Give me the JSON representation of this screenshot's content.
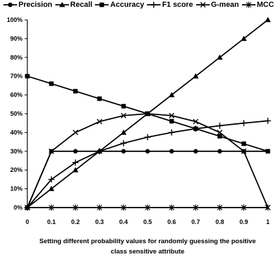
{
  "chart_data": {
    "type": "line",
    "title": "",
    "xlabel_lines": [
      "Setting different probability values for randomly guessing the positive",
      "class sensitive attribute"
    ],
    "ylabel": "",
    "x": [
      0,
      0.1,
      0.2,
      0.3,
      0.4,
      0.5,
      0.6,
      0.7,
      0.8,
      0.9,
      1
    ],
    "x_tick_labels": [
      "0",
      "0.1",
      "0.2",
      "0.3",
      "0.4",
      "0.5",
      "0.6",
      "0.7",
      "0.8",
      "0.9",
      "1"
    ],
    "ylim": [
      0,
      100
    ],
    "y_tick_labels": [
      "0%",
      "10%",
      "20%",
      "30%",
      "40%",
      "50%",
      "60%",
      "70%",
      "80%",
      "90%",
      "100%"
    ],
    "grid": false,
    "legend_position": "top",
    "series": [
      {
        "name": "Precision",
        "marker": "circle",
        "values": [
          0,
          30,
          30,
          30,
          30,
          30,
          30,
          30,
          30,
          30,
          30
        ]
      },
      {
        "name": "Recall",
        "marker": "triangle",
        "values": [
          0,
          10,
          20,
          30,
          40,
          50,
          60,
          70,
          80,
          90,
          100
        ]
      },
      {
        "name": "Accuracy",
        "marker": "square",
        "values": [
          70,
          66,
          62,
          58,
          54,
          50,
          46,
          42,
          38,
          34,
          30
        ]
      },
      {
        "name": "F1 score",
        "marker": "plus",
        "values": [
          0,
          15,
          24,
          30,
          34.3,
          37.5,
          40,
          42,
          43.6,
          45,
          46.2
        ]
      },
      {
        "name": "G-mean",
        "marker": "x",
        "values": [
          0,
          30,
          40,
          45.8,
          49,
          50,
          49,
          45.8,
          40,
          30,
          0
        ]
      },
      {
        "name": "MCC",
        "marker": "asterisk",
        "values": [
          0,
          0,
          0,
          0,
          0,
          0,
          0,
          0,
          0,
          0,
          0
        ]
      }
    ]
  }
}
